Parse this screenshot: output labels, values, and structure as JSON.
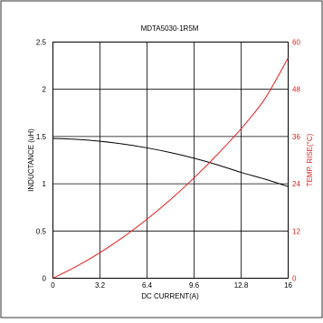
{
  "chart_data": {
    "type": "line",
    "title": "MDTA5030-1R5M",
    "xlabel": "DC CURRENT(A)",
    "ylabel_left": "INDUCTANCE (uH)",
    "ylabel_right": "TEMP. RISE(°C)",
    "xlim": [
      0,
      16
    ],
    "ylim_left": [
      0,
      2.5
    ],
    "ylim_right": [
      0,
      60
    ],
    "x_ticks": [
      "0",
      "3.2",
      "6.4",
      "9.6",
      "12.8",
      "16"
    ],
    "y_left_ticks": [
      "0",
      "0.5",
      "1",
      "1.5",
      "2",
      "2.5"
    ],
    "y_right_ticks": [
      "0",
      "12",
      "24",
      "36",
      "48",
      "60"
    ],
    "grid": true,
    "series": [
      {
        "axis": "left",
        "color": "#000000",
        "x": [
          0,
          1.6,
          3.2,
          4.8,
          6.4,
          8.0,
          9.6,
          11.2,
          12.8,
          14.4,
          16
        ],
        "y": [
          1.48,
          1.47,
          1.45,
          1.42,
          1.38,
          1.33,
          1.27,
          1.2,
          1.12,
          1.05,
          0.97
        ]
      },
      {
        "axis": "right",
        "color": "#e41e1e",
        "x": [
          0,
          1.6,
          3.2,
          4.8,
          6.4,
          8.0,
          9.6,
          11.2,
          12.8,
          14.4,
          16
        ],
        "y": [
          0,
          3,
          6.5,
          10.5,
          15,
          20,
          25.5,
          31.5,
          38,
          45.5,
          56
        ]
      }
    ]
  }
}
